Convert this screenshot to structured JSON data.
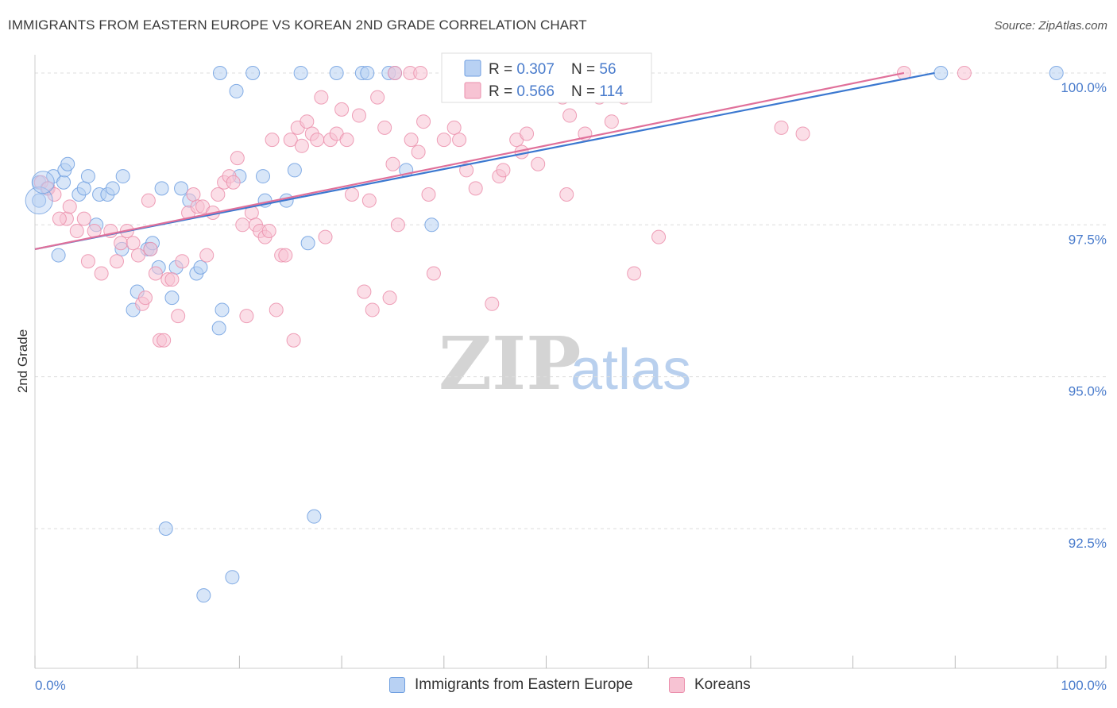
{
  "title": "IMMIGRANTS FROM EASTERN EUROPE VS KOREAN 2ND GRADE CORRELATION CHART",
  "source": "Source: ZipAtlas.com",
  "watermark": {
    "zip": "ZIP",
    "atlas": "atlas"
  },
  "colors": {
    "blue": "#6f9fe0",
    "blue_fill": "#b8d1f3",
    "blue_line": "#3b78d0",
    "pink": "#eb8fac",
    "pink_fill": "#f7c3d3",
    "pink_line": "#e0709a",
    "tick_text": "#4a7ccc",
    "grid": "#dddddd"
  },
  "legend_box": {
    "rows": [
      {
        "series": "blue",
        "r_label": "R = ",
        "r_value": "0.307",
        "n_label": "N = ",
        "n_value": "56"
      },
      {
        "series": "pink",
        "r_label": "R = ",
        "r_value": "0.566",
        "n_label": "N = ",
        "n_value": "114"
      }
    ]
  },
  "bottom_legend": {
    "blue": "Immigrants from Eastern Europe",
    "pink": "Koreans"
  },
  "chart_data": {
    "type": "scatter",
    "xlabel": "",
    "ylabel": "2nd Grade",
    "xlim": [
      0,
      100
    ],
    "ylim": [
      90.2,
      100.3
    ],
    "x_tick_labels": [
      {
        "value": 0,
        "label": "0.0%"
      },
      {
        "value": 100,
        "label": "100.0%"
      }
    ],
    "y_ticks": [
      {
        "value": 92.5,
        "label": "92.5%"
      },
      {
        "value": 95.0,
        "label": "95.0%"
      },
      {
        "value": 97.5,
        "label": "97.5%"
      },
      {
        "value": 100.0,
        "label": "100.0%"
      }
    ],
    "x_minor_ticks": [
      0,
      10,
      20,
      30,
      40,
      50,
      60,
      70,
      80,
      90,
      100
    ],
    "series": [
      {
        "name": "Immigrants from Eastern Europe",
        "color": "blue",
        "R": 0.307,
        "N": 56,
        "trend": {
          "x": [
            0,
            88
          ],
          "y": [
            97.1,
            100.0
          ]
        },
        "points": [
          [
            0.4,
            98.2
          ],
          [
            0.4,
            97.9
          ],
          [
            1.2,
            98.1
          ],
          [
            1.8,
            98.3
          ],
          [
            2.8,
            98.2
          ],
          [
            2.9,
            98.4
          ],
          [
            3.2,
            98.5
          ],
          [
            4.3,
            98.0
          ],
          [
            4.8,
            98.1
          ],
          [
            5.2,
            98.3
          ],
          [
            6.3,
            98.0
          ],
          [
            7.1,
            98.0
          ],
          [
            7.6,
            98.1
          ],
          [
            8.6,
            98.3
          ],
          [
            12.4,
            98.1
          ],
          [
            14.3,
            98.1
          ],
          [
            2.3,
            97.0
          ],
          [
            6.0,
            97.5
          ],
          [
            8.5,
            97.1
          ],
          [
            11.0,
            97.1
          ],
          [
            11.3,
            97.1
          ],
          [
            11.5,
            97.2
          ],
          [
            12.1,
            96.8
          ],
          [
            13.4,
            96.3
          ],
          [
            13.8,
            96.8
          ],
          [
            15.8,
            96.7
          ],
          [
            16.2,
            96.8
          ],
          [
            9.6,
            96.1
          ],
          [
            10.0,
            96.4
          ],
          [
            15.1,
            97.9
          ],
          [
            18.3,
            96.1
          ],
          [
            20.0,
            98.3
          ],
          [
            22.3,
            98.3
          ],
          [
            22.5,
            97.9
          ],
          [
            24.6,
            97.9
          ],
          [
            25.4,
            98.4
          ],
          [
            26.7,
            97.2
          ],
          [
            19.7,
            99.7
          ],
          [
            18.1,
            100.0
          ],
          [
            21.3,
            100.0
          ],
          [
            26.0,
            100.0
          ],
          [
            29.5,
            100.0
          ],
          [
            32.0,
            100.0
          ],
          [
            32.5,
            100.0
          ],
          [
            34.6,
            100.0
          ],
          [
            35.2,
            100.0
          ],
          [
            36.3,
            98.4
          ],
          [
            38.8,
            97.5
          ],
          [
            48.6,
            100.0
          ],
          [
            88.6,
            100.0
          ],
          [
            99.9,
            100.0
          ],
          [
            18.0,
            95.8
          ],
          [
            27.3,
            92.7
          ],
          [
            12.8,
            92.5
          ],
          [
            19.3,
            91.7
          ],
          [
            16.5,
            91.4
          ]
        ]
      },
      {
        "name": "Koreans",
        "color": "pink",
        "R": 0.566,
        "N": 114,
        "trend": {
          "x": [
            0,
            85
          ],
          "y": [
            97.1,
            100.0
          ]
        },
        "points": [
          [
            0.6,
            98.2
          ],
          [
            1.3,
            98.1
          ],
          [
            1.9,
            98.0
          ],
          [
            3.1,
            97.6
          ],
          [
            2.4,
            97.6
          ],
          [
            3.4,
            97.8
          ],
          [
            4.1,
            97.4
          ],
          [
            4.8,
            97.6
          ],
          [
            5.2,
            96.9
          ],
          [
            5.8,
            97.4
          ],
          [
            6.5,
            96.7
          ],
          [
            7.4,
            97.4
          ],
          [
            8.0,
            96.9
          ],
          [
            8.4,
            97.2
          ],
          [
            9.0,
            97.4
          ],
          [
            9.6,
            97.2
          ],
          [
            10.1,
            97.0
          ],
          [
            10.5,
            96.2
          ],
          [
            10.8,
            96.3
          ],
          [
            11.1,
            97.9
          ],
          [
            11.3,
            97.1
          ],
          [
            11.8,
            96.7
          ],
          [
            12.2,
            95.6
          ],
          [
            12.6,
            95.6
          ],
          [
            13.0,
            96.6
          ],
          [
            13.4,
            96.6
          ],
          [
            14.0,
            96.0
          ],
          [
            14.4,
            96.9
          ],
          [
            15.0,
            97.7
          ],
          [
            15.5,
            98.0
          ],
          [
            15.9,
            97.8
          ],
          [
            16.4,
            97.8
          ],
          [
            16.8,
            97.0
          ],
          [
            17.4,
            97.7
          ],
          [
            17.9,
            98.0
          ],
          [
            18.5,
            98.2
          ],
          [
            19.0,
            98.3
          ],
          [
            19.4,
            98.2
          ],
          [
            19.8,
            98.6
          ],
          [
            20.3,
            97.5
          ],
          [
            20.7,
            96.0
          ],
          [
            21.2,
            97.7
          ],
          [
            21.6,
            97.5
          ],
          [
            22.0,
            97.4
          ],
          [
            22.5,
            97.3
          ],
          [
            22.9,
            97.4
          ],
          [
            23.2,
            98.9
          ],
          [
            23.6,
            96.1
          ],
          [
            24.1,
            97.0
          ],
          [
            24.5,
            97.0
          ],
          [
            25.0,
            98.9
          ],
          [
            25.3,
            95.6
          ],
          [
            25.7,
            99.1
          ],
          [
            26.1,
            98.8
          ],
          [
            26.6,
            99.2
          ],
          [
            27.1,
            99.0
          ],
          [
            27.6,
            98.9
          ],
          [
            28.0,
            99.6
          ],
          [
            28.4,
            97.3
          ],
          [
            28.9,
            98.9
          ],
          [
            29.5,
            99.0
          ],
          [
            30.0,
            99.4
          ],
          [
            30.5,
            98.9
          ],
          [
            31.0,
            98.0
          ],
          [
            31.7,
            99.3
          ],
          [
            32.2,
            96.4
          ],
          [
            32.7,
            97.9
          ],
          [
            33.0,
            96.1
          ],
          [
            33.5,
            99.6
          ],
          [
            34.2,
            99.1
          ],
          [
            34.7,
            96.3
          ],
          [
            35.0,
            98.5
          ],
          [
            35.5,
            97.5
          ],
          [
            36.8,
            98.9
          ],
          [
            37.5,
            98.7
          ],
          [
            38.0,
            99.2
          ],
          [
            38.5,
            98.0
          ],
          [
            39.0,
            96.7
          ],
          [
            40.0,
            98.9
          ],
          [
            41.0,
            99.1
          ],
          [
            41.5,
            98.9
          ],
          [
            42.2,
            98.4
          ],
          [
            43.1,
            98.1
          ],
          [
            44.7,
            96.2
          ],
          [
            45.4,
            98.3
          ],
          [
            45.8,
            98.4
          ],
          [
            47.1,
            98.9
          ],
          [
            47.6,
            98.7
          ],
          [
            48.1,
            99.0
          ],
          [
            49.2,
            98.5
          ],
          [
            51.6,
            99.6
          ],
          [
            52.0,
            98.0
          ],
          [
            52.3,
            99.3
          ],
          [
            53.8,
            99.0
          ],
          [
            55.2,
            99.6
          ],
          [
            56.4,
            99.2
          ],
          [
            57.6,
            99.6
          ],
          [
            58.6,
            96.7
          ],
          [
            61.0,
            97.3
          ],
          [
            73.0,
            99.1
          ],
          [
            75.1,
            99.0
          ],
          [
            35.2,
            100.0
          ],
          [
            36.7,
            100.0
          ],
          [
            37.7,
            100.0
          ],
          [
            40.8,
            100.0
          ],
          [
            43.2,
            100.0
          ],
          [
            44.6,
            100.0
          ],
          [
            47.5,
            100.0
          ],
          [
            48.1,
            100.0
          ],
          [
            48.5,
            100.0
          ],
          [
            50.0,
            100.0
          ],
          [
            51.9,
            100.0
          ],
          [
            85.0,
            100.0
          ],
          [
            90.9,
            100.0
          ]
        ]
      }
    ]
  }
}
